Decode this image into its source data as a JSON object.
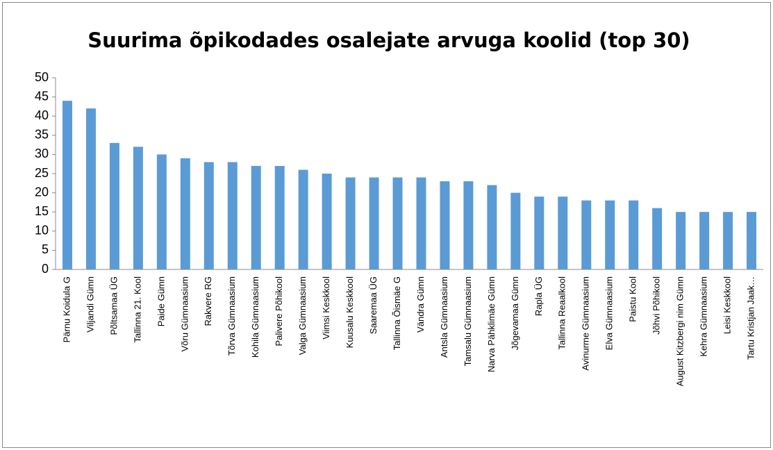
{
  "chart_data": {
    "type": "bar",
    "title": "Suurima õpikodades osalejate arvuga koolid (top 30)",
    "categories": [
      "Pärnu Koidula G",
      "Viljandi Gümn",
      "Põltsamaa ÜG",
      "Tallinna 21. Kool",
      "Paide Gümn",
      "Võru Gümnaasium",
      "Rakvere RG",
      "Tõrva Gümnaasium",
      "Kohila Gümnaasium",
      "Palivere Põhikool",
      "Valga Gümnaasium",
      "Viimsi Keskkool",
      "Kuusalu Keskkool",
      "Saaremaa ÜG",
      "Tallinna Õismäe G",
      "Vändra Gümn",
      "Antsla Gümnaasium",
      "Tamsalu Gümnaasium",
      "Narva Pähklimäe Gümn",
      "Jõgevamaa Gümn",
      "Rapla ÜG",
      "Tallinna Reaalkool",
      "Avinurme Gümnaasium",
      "Elva Gümnaasium",
      "Paistu Kool",
      "Jõhvi Põhikool",
      "August Kitzbergi nim Gümn",
      "Kehra Gümnaasium",
      "Leisi Keskkool",
      "Tartu Kristjan Jaak…"
    ],
    "values": [
      44,
      42,
      33,
      32,
      30,
      29,
      28,
      28,
      27,
      27,
      26,
      25,
      24,
      24,
      24,
      24,
      23,
      23,
      22,
      20,
      19,
      19,
      18,
      18,
      18,
      16,
      15,
      15,
      15,
      15
    ],
    "color": "#5b9bd5",
    "ylim": [
      0,
      50
    ],
    "yticks": [
      0,
      5,
      10,
      15,
      20,
      25,
      30,
      35,
      40,
      45,
      50
    ],
    "grid": false
  }
}
